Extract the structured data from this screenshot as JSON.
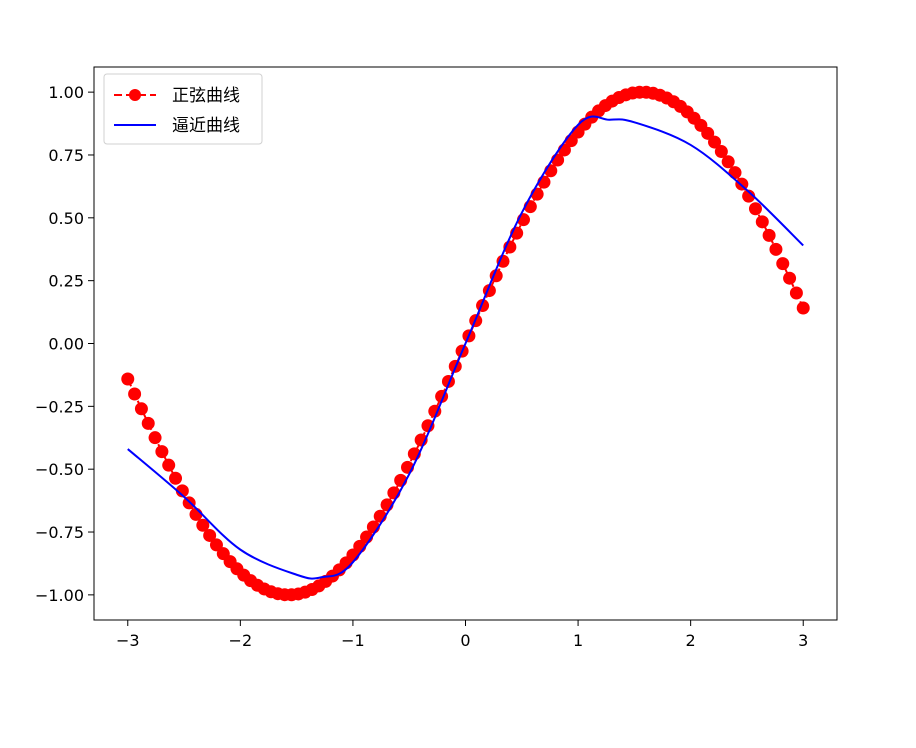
{
  "chart_data": {
    "type": "line",
    "title": "",
    "xlabel": "",
    "ylabel": "",
    "xlim": [
      -3.3,
      3.3
    ],
    "ylim": [
      -1.1,
      1.1
    ],
    "x_ticks": [
      -3,
      -2,
      -1,
      0,
      1,
      2,
      3
    ],
    "x_tick_labels": [
      "−3",
      "−2",
      "−1",
      "0",
      "1",
      "2",
      "3"
    ],
    "y_ticks": [
      -1.0,
      -0.75,
      -0.5,
      -0.25,
      0.0,
      0.25,
      0.5,
      0.75,
      1.0
    ],
    "y_tick_labels": [
      "−1.00",
      "−0.75",
      "−0.50",
      "−0.25",
      "0.00",
      "0.25",
      "0.50",
      "0.75",
      "1.00"
    ],
    "grid": false,
    "legend_position": "top-left",
    "series": [
      {
        "name": "正弦曲线",
        "style": "dashed line with circle markers",
        "color": "#ff0000",
        "function": "sin(x)",
        "x_start": -3,
        "x_end": 3,
        "num_points": 100
      },
      {
        "name": "逼近曲线",
        "style": "solid line",
        "color": "#0000ff",
        "function": "polynomial fit of sin(x)",
        "x": [
          -3.0,
          -2.5,
          -2.0,
          -1.5,
          -1.28,
          -1.0,
          -0.5,
          0.0,
          0.5,
          1.0,
          1.28,
          1.5,
          2.0,
          2.5,
          3.0
        ],
        "values": [
          -0.42,
          -0.61,
          -0.82,
          -0.92,
          -0.93,
          -0.87,
          -0.52,
          0.0,
          0.52,
          0.87,
          0.89,
          0.88,
          0.79,
          0.61,
          0.39
        ]
      }
    ]
  }
}
